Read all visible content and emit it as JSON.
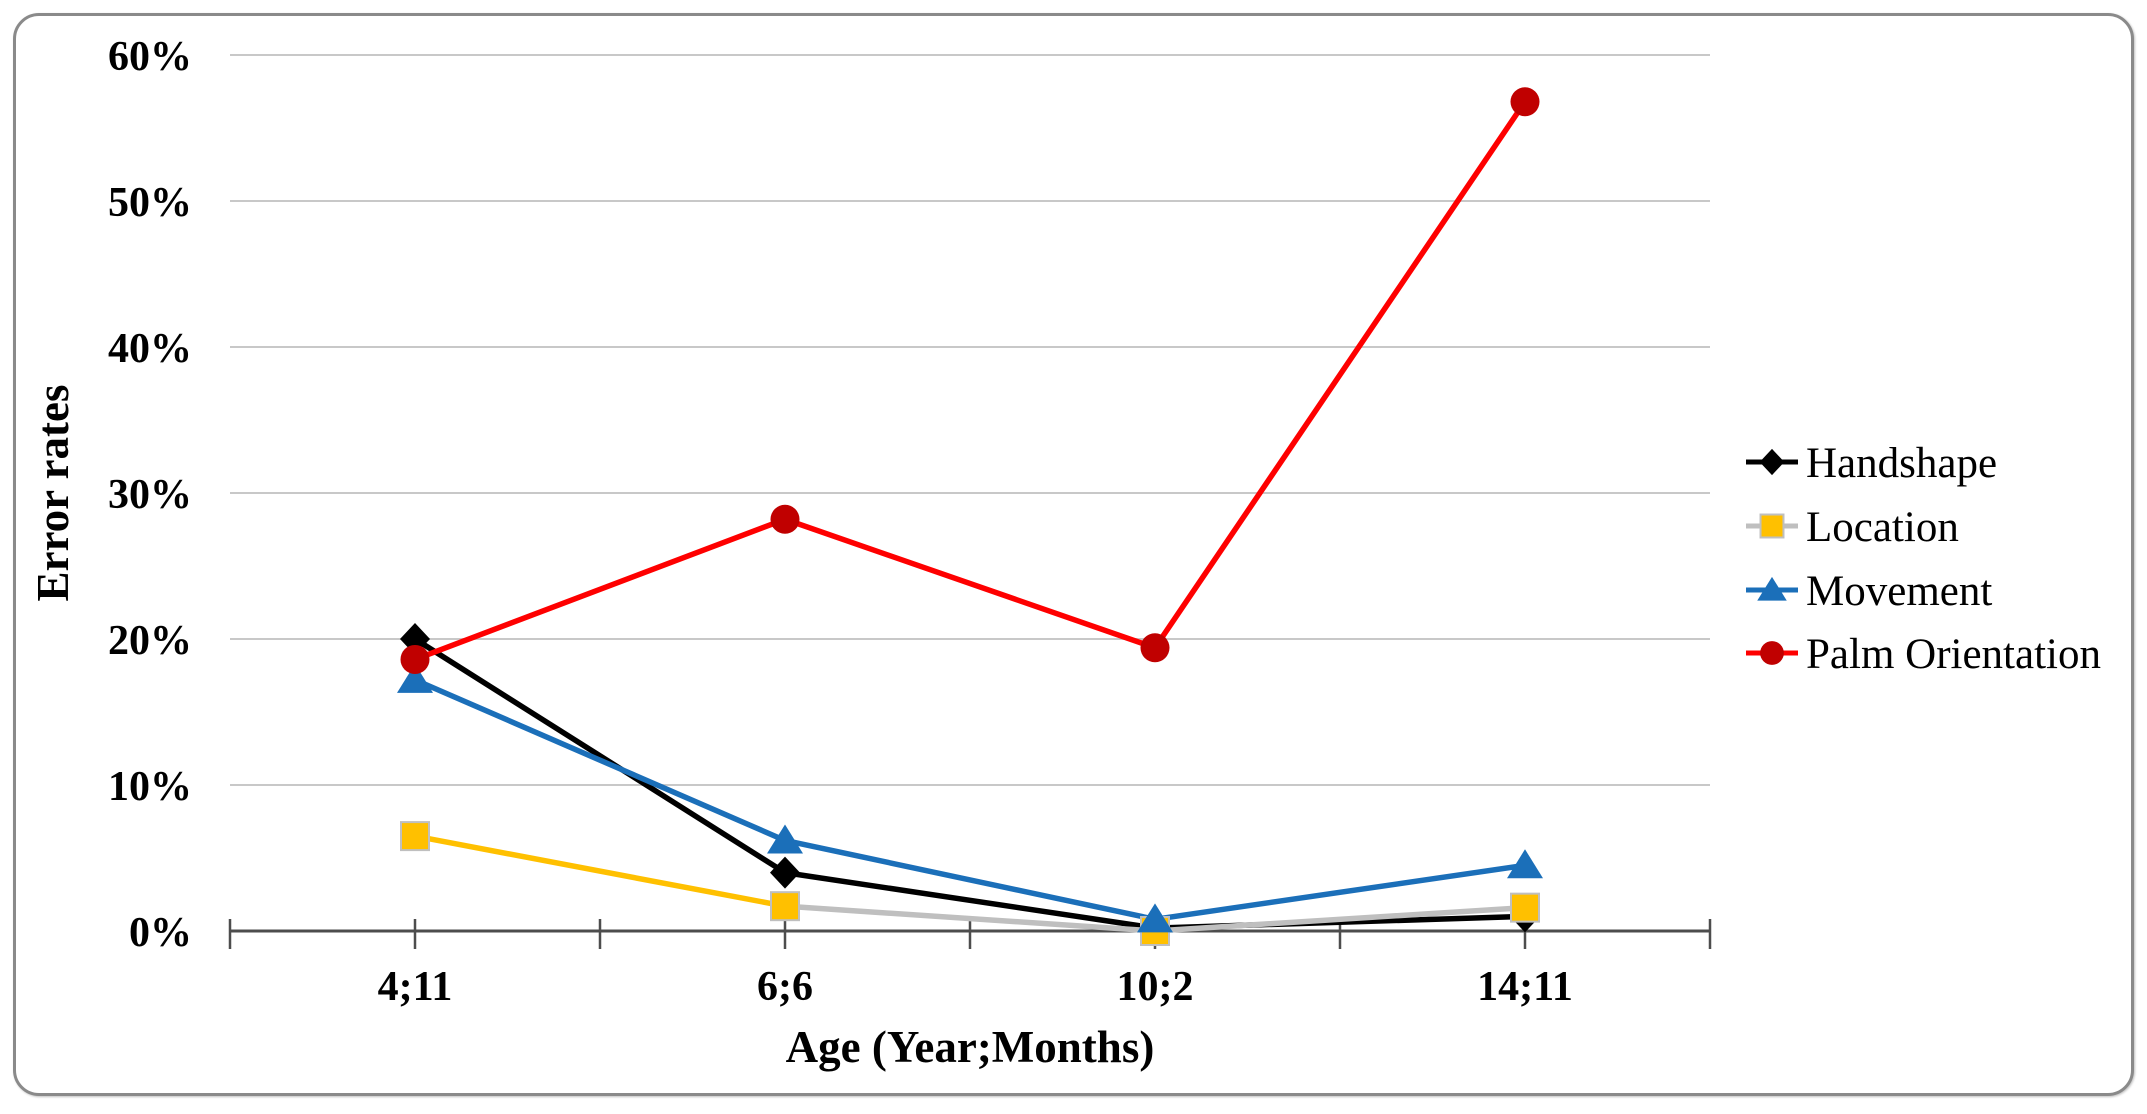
{
  "figure": {
    "background": "#ffffff",
    "border_color": "#8a8a8a"
  },
  "chart_data": {
    "type": "line",
    "title": "",
    "xlabel": "Age (Year;Months)",
    "ylabel": "Error rates",
    "categories": [
      "4;11",
      "6;6",
      "10;2",
      "14;11"
    ],
    "series": [
      {
        "name": "Handshape",
        "values": [
          20,
          4,
          0.2,
          1
        ],
        "line_color": "#000000",
        "marker": "diamond",
        "marker_color": "#000000"
      },
      {
        "name": "Location",
        "values": [
          6.5,
          1.7,
          0,
          1.6
        ],
        "line_color": "#bfbfbf",
        "segment_colors": [
          "#ffc000",
          "#bfbfbf",
          "#bfbfbf"
        ],
        "marker": "square",
        "marker_color": "#ffc000",
        "marker_outline": "#bfbfbf"
      },
      {
        "name": "Movement",
        "values": [
          17.2,
          6.2,
          0.8,
          4.5
        ],
        "line_color": "#1b6fb9",
        "marker": "triangle",
        "marker_color": "#1b6fb9"
      },
      {
        "name": "Palm Orientation",
        "values": [
          18.6,
          28.2,
          19.4,
          56.8
        ],
        "line_color": "#fe0000",
        "marker": "circle",
        "marker_color": "#c00000"
      }
    ],
    "y_ticks": [
      "60%",
      "50%",
      "40%",
      "30%",
      "20%",
      "10%",
      "0%"
    ],
    "ylim": [
      0,
      60
    ],
    "y_tick_step": 10,
    "grid": true,
    "gridline_color": "#c8c8c8",
    "axis_color": "#4d4d4d",
    "legend_position": "right"
  }
}
